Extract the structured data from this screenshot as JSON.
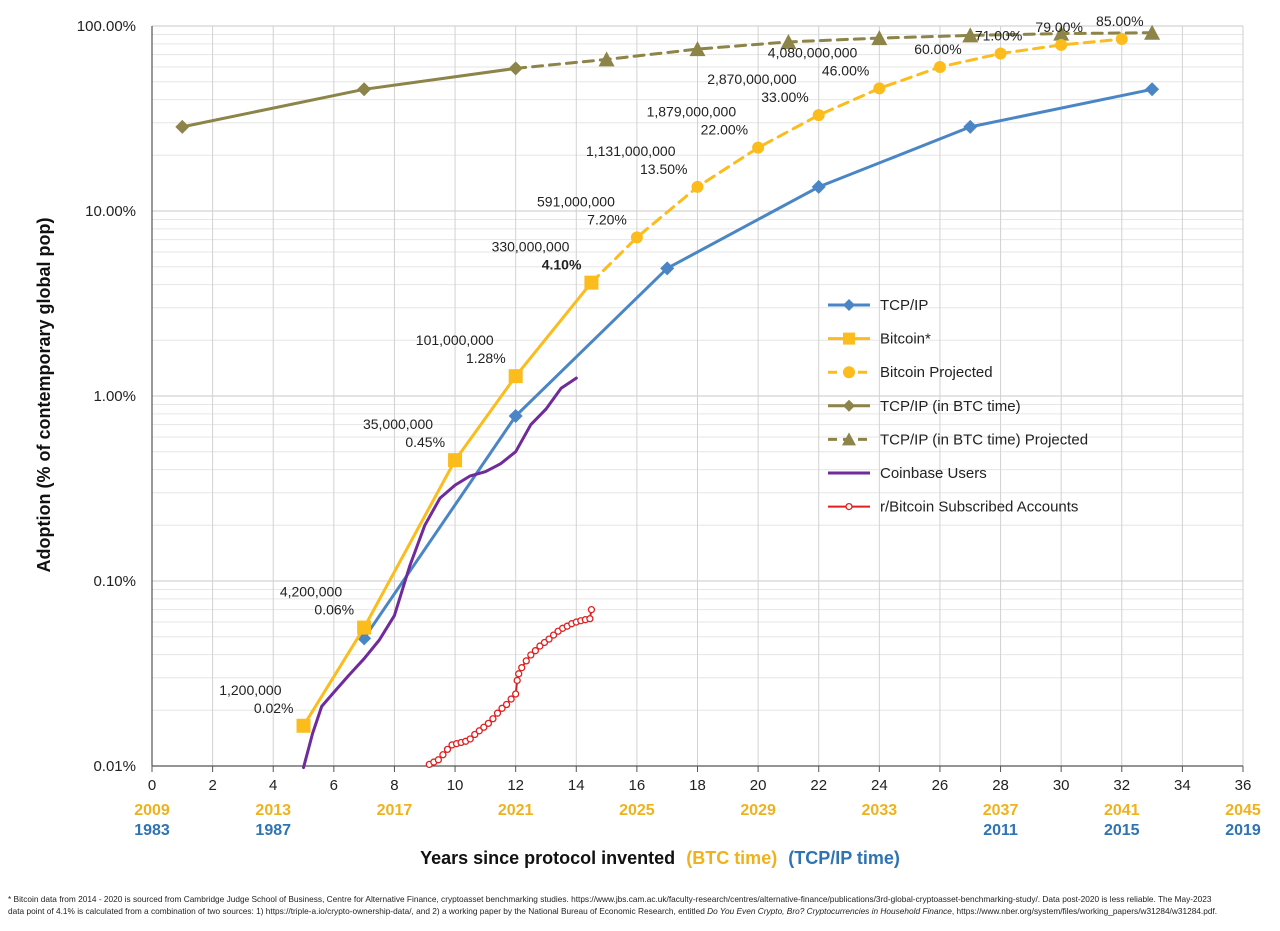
{
  "chart_data": {
    "type": "line",
    "title": "",
    "xlabel": "Years since protocol invented",
    "xlabel_btc": "(BTC time)",
    "xlabel_tcp": "(TCP/IP time)",
    "ylabel": "Adoption (% of contemporary global pop)",
    "xlim": [
      0,
      36
    ],
    "ylim": [
      0.01,
      100
    ],
    "yscale": "log",
    "grid": true,
    "legend_position": "right-center",
    "x_ticks": [
      0,
      2,
      4,
      6,
      8,
      10,
      12,
      14,
      16,
      18,
      20,
      22,
      24,
      26,
      28,
      30,
      32,
      34,
      36
    ],
    "y_ticks": [
      {
        "value": 100,
        "label": "100.00%"
      },
      {
        "value": 10,
        "label": "10.00%"
      },
      {
        "value": 1,
        "label": "1.00%"
      },
      {
        "value": 0.1,
        "label": "0.10%"
      },
      {
        "value": 0.01,
        "label": "0.01%"
      }
    ],
    "btc_years": [
      {
        "x": 0,
        "label": "2009"
      },
      {
        "x": 4,
        "label": "2013"
      },
      {
        "x": 8,
        "label": "2017"
      },
      {
        "x": 12,
        "label": "2021"
      },
      {
        "x": 16,
        "label": "2025"
      },
      {
        "x": 20,
        "label": "2029"
      },
      {
        "x": 24,
        "label": "2033"
      },
      {
        "x": 28,
        "label": "2037"
      },
      {
        "x": 32,
        "label": "2041"
      },
      {
        "x": 36,
        "label": "2045"
      }
    ],
    "tcp_years": [
      {
        "x": 0,
        "label": "1983"
      },
      {
        "x": 4,
        "label": "1987"
      },
      {
        "x": 28,
        "label": "2011"
      },
      {
        "x": 32,
        "label": "2015"
      },
      {
        "x": 36,
        "label": "2019"
      }
    ],
    "colors": {
      "tcp": "#4a86c5",
      "btc": "#fbbc1c",
      "tcp_btc": "#8c8448",
      "coinbase": "#6f2a9c",
      "reddit": "#e02020",
      "btc_year_label": "#f0b21c",
      "tcp_year_label": "#2e74b5"
    },
    "series": [
      {
        "name": "TCP/IP",
        "style": "solid",
        "marker": "diamond",
        "points": [
          [
            7,
            0.049
          ],
          [
            12,
            0.78
          ],
          [
            17,
            4.9
          ],
          [
            22,
            13.5
          ],
          [
            27,
            28.5
          ],
          [
            33,
            45.5
          ]
        ]
      },
      {
        "name": "Bitcoin*",
        "style": "solid",
        "marker": "square",
        "points": [
          [
            5,
            0.0165
          ],
          [
            7,
            0.056
          ],
          [
            10,
            0.45
          ],
          [
            12,
            1.28
          ],
          [
            14.5,
            4.1
          ]
        ]
      },
      {
        "name": "Bitcoin Projected",
        "style": "dashed",
        "marker": "circle",
        "points": [
          [
            14.5,
            4.1
          ],
          [
            16,
            7.2
          ],
          [
            18,
            13.5
          ],
          [
            20,
            22
          ],
          [
            22,
            33
          ],
          [
            24,
            46
          ],
          [
            26,
            60
          ],
          [
            28,
            71
          ],
          [
            30,
            79
          ],
          [
            32,
            85
          ]
        ]
      },
      {
        "name": "TCP/IP (in BTC time)",
        "style": "solid",
        "marker": "diamond",
        "points": [
          [
            1,
            28.5
          ],
          [
            7,
            45.5
          ],
          [
            12,
            59
          ]
        ]
      },
      {
        "name": "TCP/IP (in BTC time) Projected",
        "style": "dashed",
        "marker": "triangle",
        "points": [
          [
            12,
            59
          ],
          [
            15,
            66
          ],
          [
            18,
            75
          ],
          [
            21,
            82
          ],
          [
            24,
            86
          ],
          [
            27,
            89
          ],
          [
            30,
            91
          ],
          [
            33,
            92
          ]
        ]
      },
      {
        "name": "Coinbase Users",
        "style": "solid",
        "marker": "none",
        "points": [
          [
            5,
            0.0098
          ],
          [
            5.3,
            0.015
          ],
          [
            5.6,
            0.021
          ],
          [
            6,
            0.025
          ],
          [
            6.5,
            0.031
          ],
          [
            7,
            0.038
          ],
          [
            7.5,
            0.048
          ],
          [
            8,
            0.065
          ],
          [
            8.5,
            0.12
          ],
          [
            9,
            0.2
          ],
          [
            9.5,
            0.28
          ],
          [
            10,
            0.33
          ],
          [
            10.5,
            0.37
          ],
          [
            11,
            0.39
          ],
          [
            11.5,
            0.43
          ],
          [
            12,
            0.5
          ],
          [
            12.5,
            0.7
          ],
          [
            13,
            0.85
          ],
          [
            13.5,
            1.1
          ],
          [
            14,
            1.25
          ]
        ]
      },
      {
        "name": "r/Bitcoin Subscribed Accounts",
        "style": "solid",
        "marker": "hollow-circle",
        "points": [
          [
            9.15,
            0.0102
          ],
          [
            9.3,
            0.0105
          ],
          [
            9.45,
            0.0108
          ],
          [
            9.6,
            0.0115
          ],
          [
            9.75,
            0.0123
          ],
          [
            9.9,
            0.013
          ],
          [
            10.05,
            0.0132
          ],
          [
            10.2,
            0.0134
          ],
          [
            10.35,
            0.0136
          ],
          [
            10.5,
            0.014
          ],
          [
            10.65,
            0.0148
          ],
          [
            10.8,
            0.0155
          ],
          [
            10.95,
            0.0162
          ],
          [
            11.1,
            0.017
          ],
          [
            11.25,
            0.018
          ],
          [
            11.4,
            0.0193
          ],
          [
            11.55,
            0.0205
          ],
          [
            11.7,
            0.0215
          ],
          [
            11.85,
            0.023
          ],
          [
            12.0,
            0.0245
          ],
          [
            12.05,
            0.029
          ],
          [
            12.1,
            0.0315
          ],
          [
            12.2,
            0.034
          ],
          [
            12.35,
            0.037
          ],
          [
            12.5,
            0.0398
          ],
          [
            12.65,
            0.042
          ],
          [
            12.8,
            0.0445
          ],
          [
            12.95,
            0.0465
          ],
          [
            13.1,
            0.0485
          ],
          [
            13.25,
            0.051
          ],
          [
            13.4,
            0.0535
          ],
          [
            13.55,
            0.0555
          ],
          [
            13.7,
            0.057
          ],
          [
            13.85,
            0.0588
          ],
          [
            14.0,
            0.06
          ],
          [
            14.15,
            0.061
          ],
          [
            14.3,
            0.0618
          ],
          [
            14.45,
            0.0625
          ],
          [
            14.5,
            0.07
          ]
        ]
      }
    ],
    "annotations": [
      {
        "x": 5,
        "y": 0.0165,
        "users": "1,200,000",
        "pct": "0.02%"
      },
      {
        "x": 7,
        "y": 0.056,
        "users": "4,200,000",
        "pct": "0.06%"
      },
      {
        "x": 10,
        "y": 0.45,
        "users": "35,000,000",
        "pct": "0.45%"
      },
      {
        "x": 12,
        "y": 1.28,
        "users": "101,000,000",
        "pct": "1.28%"
      },
      {
        "x": 14.5,
        "y": 4.1,
        "users": "330,000,000",
        "pct": "4.10%"
      },
      {
        "x": 16,
        "y": 7.2,
        "users": "591,000,000",
        "pct": "7.20%"
      },
      {
        "x": 18,
        "y": 13.5,
        "users": "1,131,000,000",
        "pct": "13.50%"
      },
      {
        "x": 20,
        "y": 22,
        "users": "1,879,000,000",
        "pct": "22.00%"
      },
      {
        "x": 22,
        "y": 33,
        "users": "2,870,000,000",
        "pct": "33.00%"
      },
      {
        "x": 24,
        "y": 46,
        "users": "4,080,000,000",
        "pct": "46.00%"
      },
      {
        "x": 26,
        "y": 60,
        "users": "",
        "pct": "60.00%"
      },
      {
        "x": 28,
        "y": 71,
        "users": "",
        "pct": "71.00%"
      },
      {
        "x": 30,
        "y": 79,
        "users": "",
        "pct": "79.00%"
      },
      {
        "x": 32,
        "y": 85,
        "users": "",
        "pct": "85.00%"
      }
    ]
  },
  "footnote": {
    "line1": "* Bitcoin data from 2014 - 2020 is sourced from Cambridge Judge School of Business, Centre for Alternative Finance, cryptoasset benchmarking studies. https://www.jbs.cam.ac.uk/faculty-research/centres/alternative-finance/publications/3rd-global-cryptoasset-benchmarking-study/. Data post-2020 is less reliable. The May-2023",
    "line2_pre": "data point of 4.1% is calculated from a combination of two sources: 1) https://triple-a.io/crypto-ownership-data/, and 2) a working paper by the National Bureau of Economic Research, entitled ",
    "line2_title": "Do You Even Crypto, Bro? Cryptocurrencies in Household Finance",
    "line2_post": ", https://www.nber.org/system/files/working_papers/w31284/w31284.pdf."
  }
}
